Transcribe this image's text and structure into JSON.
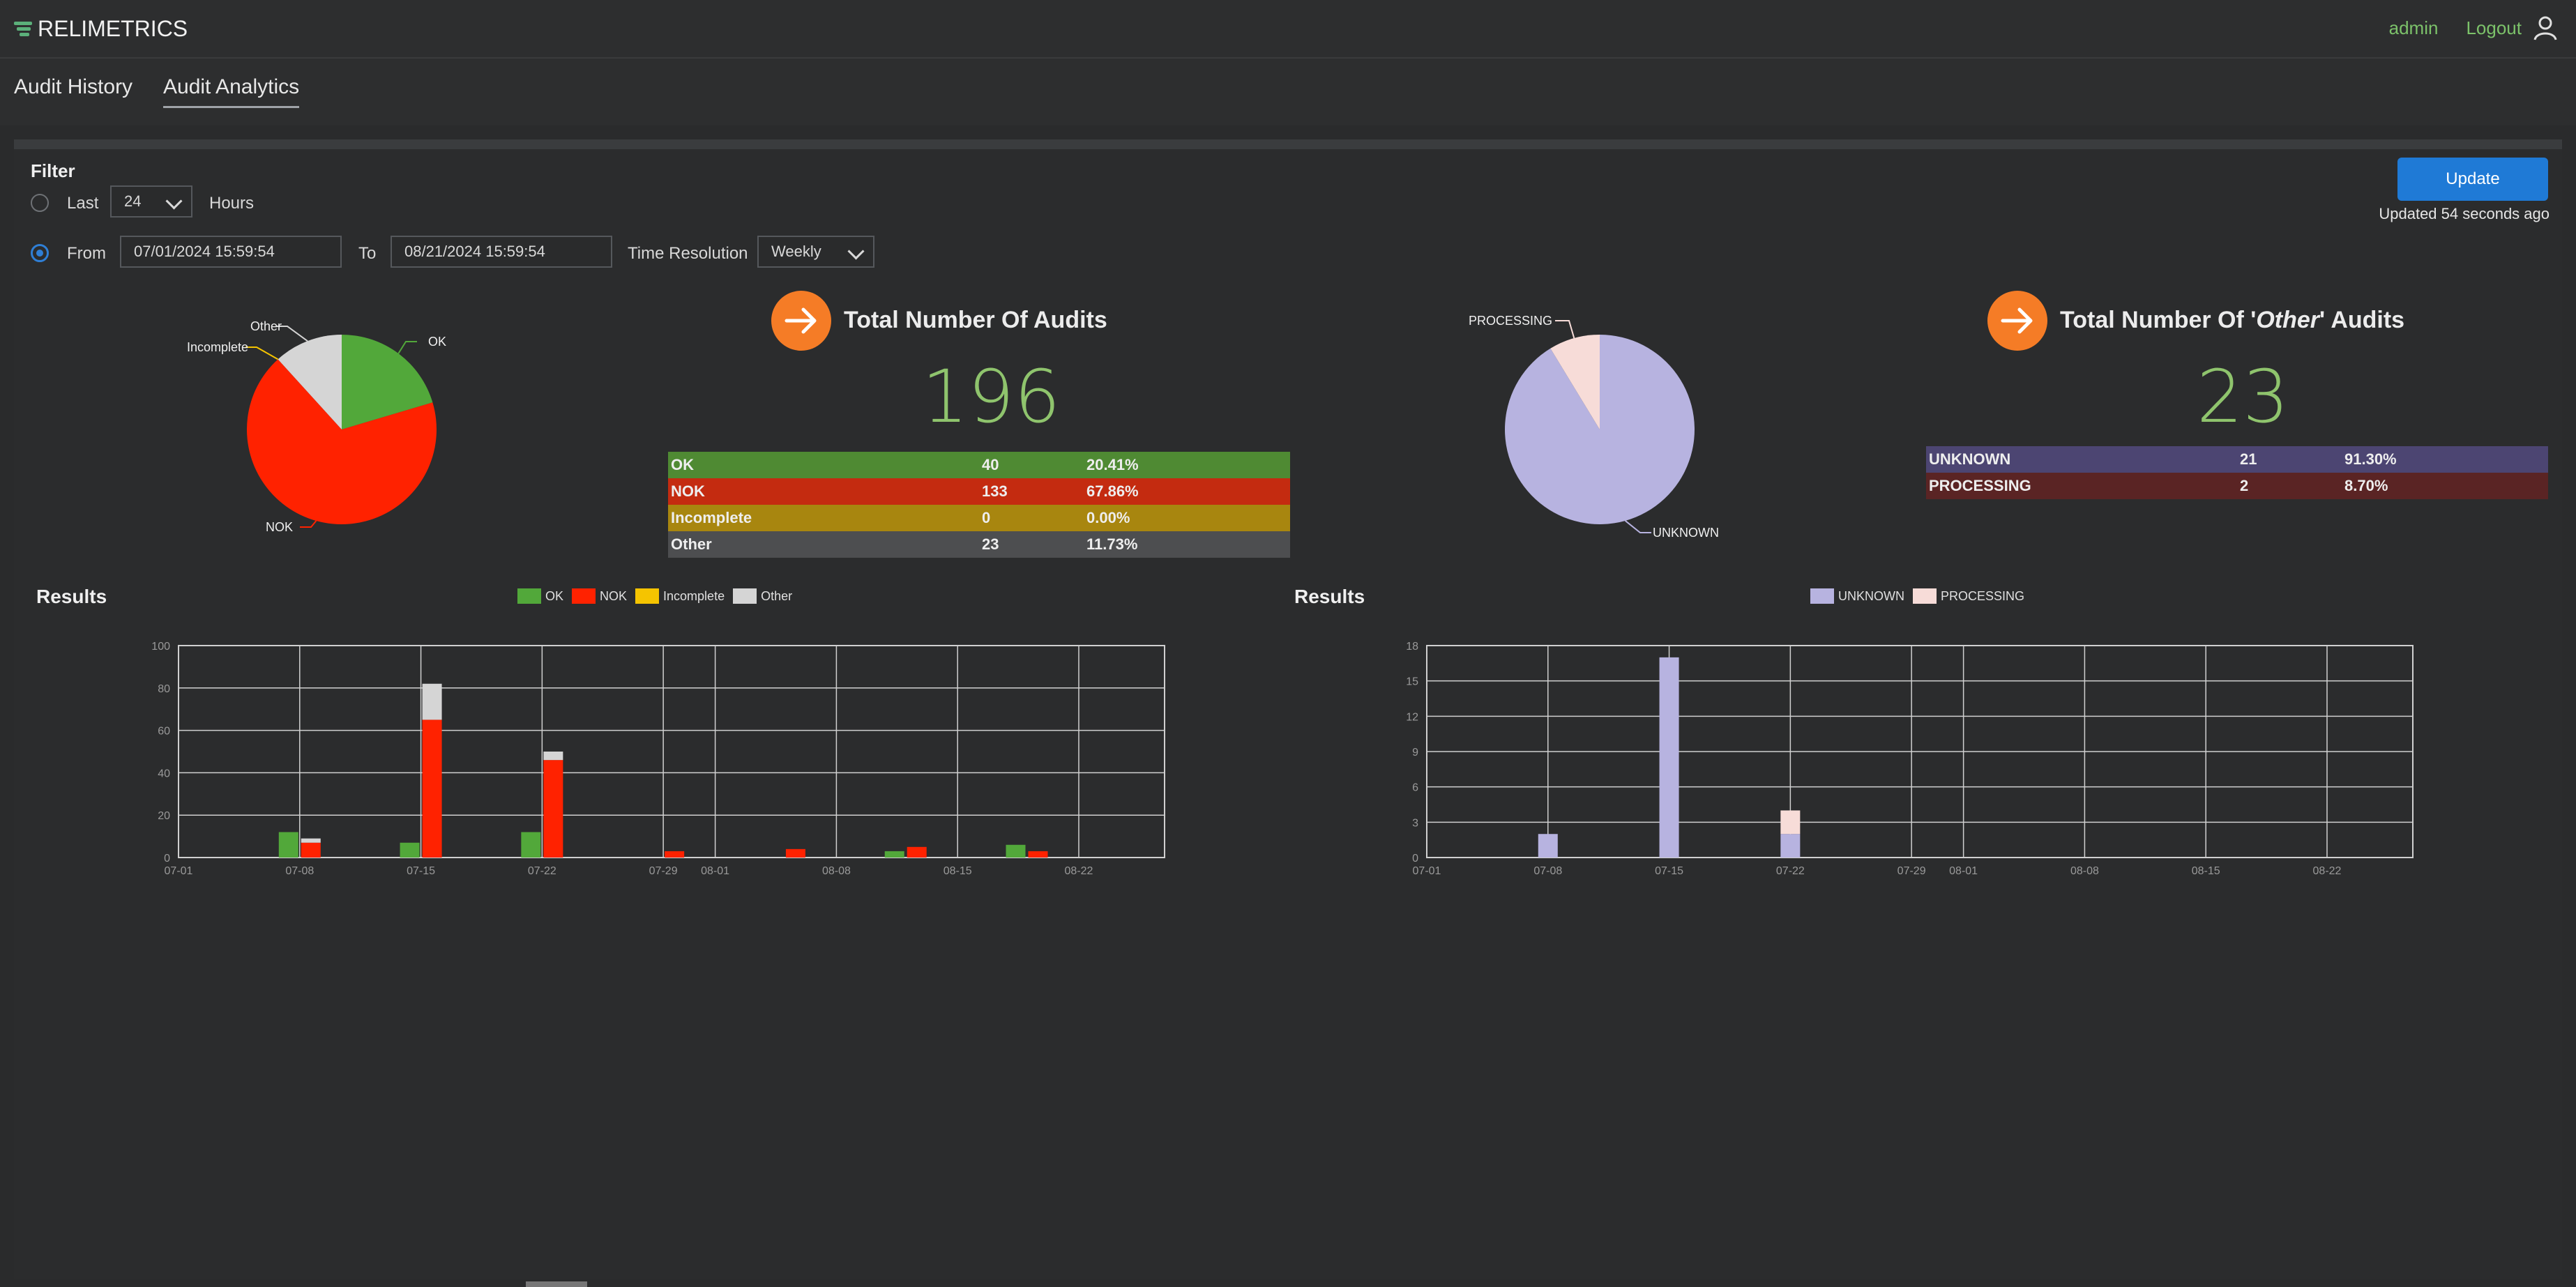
{
  "app": {
    "brand": "RELIMETRICS",
    "user": "admin",
    "logout": "Logout"
  },
  "tabs": [
    {
      "label": "Audit History",
      "active": false
    },
    {
      "label": "Audit Analytics",
      "active": true
    }
  ],
  "filter": {
    "title": "Filter",
    "last_label": "Last",
    "last_value": "24",
    "hours_label": "Hours",
    "from_label": "From",
    "from_value": "07/01/2024 15:59:54",
    "to_label": "To",
    "to_value": "08/21/2024 15:59:54",
    "resolution_label": "Time Resolution",
    "resolution_value": "Weekly",
    "selected_mode": "From"
  },
  "update": {
    "button": "Update",
    "status": "Updated 54 seconds ago"
  },
  "colors": {
    "ok": "#52a83a",
    "nok": "#ff2200",
    "incomplete": "#f5c400",
    "other": "#d5d5d5",
    "unknown": "#b7b3e0",
    "processing": "#f7dcd8",
    "accent": "#f57c26",
    "kpi": "#8fc46d"
  },
  "audits": {
    "title": "Total Number Of Audits",
    "total": "196",
    "rows": [
      {
        "label": "OK",
        "count": "40",
        "pct": "20.41%",
        "color": "#4f8a33"
      },
      {
        "label": "NOK",
        "count": "133",
        "pct": "67.86%",
        "color": "#c42b10"
      },
      {
        "label": "Incomplete",
        "count": "0",
        "pct": "0.00%",
        "color": "#a8860f"
      },
      {
        "label": "Other",
        "count": "23",
        "pct": "11.73%",
        "color": "#4d4e50"
      }
    ]
  },
  "other_audits": {
    "title_prefix": "Total Number Of '",
    "title_em": "Other",
    "title_suffix": "' Audits",
    "total": "23",
    "rows": [
      {
        "label": "UNKNOWN",
        "count": "21",
        "pct": "91.30%",
        "color": "#4c4572"
      },
      {
        "label": "PROCESSING",
        "count": "2",
        "pct": "8.70%",
        "color": "#5a2424"
      }
    ]
  },
  "chart_data": [
    {
      "type": "pie",
      "labels": [
        "OK",
        "NOK",
        "Incomplete",
        "Other"
      ],
      "values": [
        40,
        133,
        0,
        23
      ],
      "colors": [
        "#52a83a",
        "#ff2200",
        "#f5c400",
        "#d5d5d5"
      ]
    },
    {
      "type": "pie",
      "labels": [
        "UNKNOWN",
        "PROCESSING"
      ],
      "values": [
        21,
        2
      ],
      "colors": [
        "#b7b3e0",
        "#f7dcd8"
      ]
    },
    {
      "type": "bar",
      "title": "Results",
      "legend": [
        "OK",
        "NOK",
        "Incomplete",
        "Other"
      ],
      "legend_position": "top",
      "ylim": [
        0,
        100
      ],
      "yticks": [
        0,
        20,
        40,
        60,
        80,
        100
      ],
      "xticks": [
        "07-01",
        "07-08",
        "07-15",
        "07-22",
        "07-29",
        "08-01",
        "08-08",
        "08-15",
        "08-22"
      ],
      "grid": true,
      "groups": [
        {
          "x": "07-08",
          "ok": 12,
          "nok": 7,
          "incomplete": 0,
          "other": 2
        },
        {
          "x": "07-15",
          "ok": 7,
          "nok": 65,
          "incomplete": 0,
          "other": 17
        },
        {
          "x": "07-22",
          "ok": 12,
          "nok": 46,
          "incomplete": 0,
          "other": 4
        },
        {
          "x": "07-29",
          "ok": 0,
          "nok": 3,
          "incomplete": 0,
          "other": 0
        },
        {
          "x": "08-05",
          "ok": 0,
          "nok": 4,
          "incomplete": 0,
          "other": 0
        },
        {
          "x": "08-12",
          "ok": 3,
          "nok": 5,
          "incomplete": 0,
          "other": 0
        },
        {
          "x": "08-19",
          "ok": 6,
          "nok": 3,
          "incomplete": 0,
          "other": 0
        }
      ]
    },
    {
      "type": "bar",
      "title": "Results",
      "legend": [
        "UNKNOWN",
        "PROCESSING"
      ],
      "legend_position": "top",
      "ylim": [
        0,
        18
      ],
      "yticks": [
        0,
        3,
        6,
        9,
        12,
        15,
        18
      ],
      "xticks": [
        "07-01",
        "07-08",
        "07-15",
        "07-22",
        "07-29",
        "08-01",
        "08-08",
        "08-15",
        "08-22"
      ],
      "grid": true,
      "groups": [
        {
          "x": "07-08",
          "unknown": 2,
          "processing": 0
        },
        {
          "x": "07-15",
          "unknown": 17,
          "processing": 0
        },
        {
          "x": "07-22",
          "unknown": 2,
          "processing": 2
        }
      ]
    }
  ]
}
